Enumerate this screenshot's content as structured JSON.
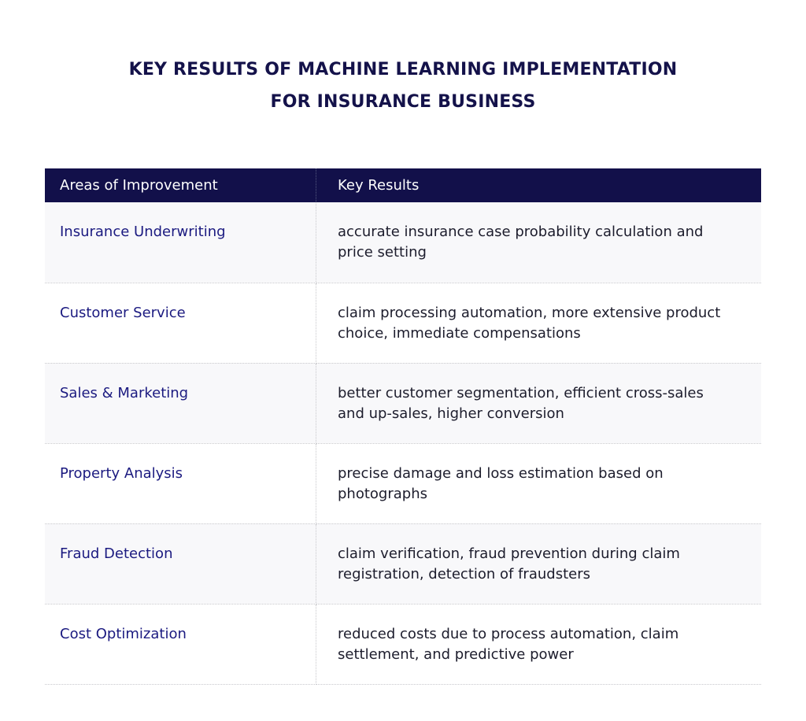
{
  "title_line1": "KEY RESULTS OF MACHINE LEARNING IMPLEMENTATION",
  "title_line2": "FOR INSURANCE BUSINESS",
  "colors": {
    "header_bg": "#12104a",
    "area_text": "#1b1a80",
    "row_shade": "#f8f8fa"
  },
  "table": {
    "headers": [
      "Areas of Improvement",
      "Key Results"
    ],
    "rows": [
      {
        "area": "Insurance Underwriting",
        "result": "accurate insurance case probability calculation and price setting"
      },
      {
        "area": "Customer Service",
        "result": "claim processing automation, more extensive product choice, immediate compensations"
      },
      {
        "area": "Sales & Marketing",
        "result": "better customer segmentation, efficient cross-sales and up-sales, higher conversion"
      },
      {
        "area": "Property Analysis",
        "result": "precise damage and loss estimation based on photographs"
      },
      {
        "area": "Fraud Detection",
        "result": "claim verification, fraud prevention during claim registration, detection of fraudsters"
      },
      {
        "area": "Cost Optimization",
        "result": "reduced costs due to process automation, claim settlement, and predictive power"
      }
    ]
  }
}
